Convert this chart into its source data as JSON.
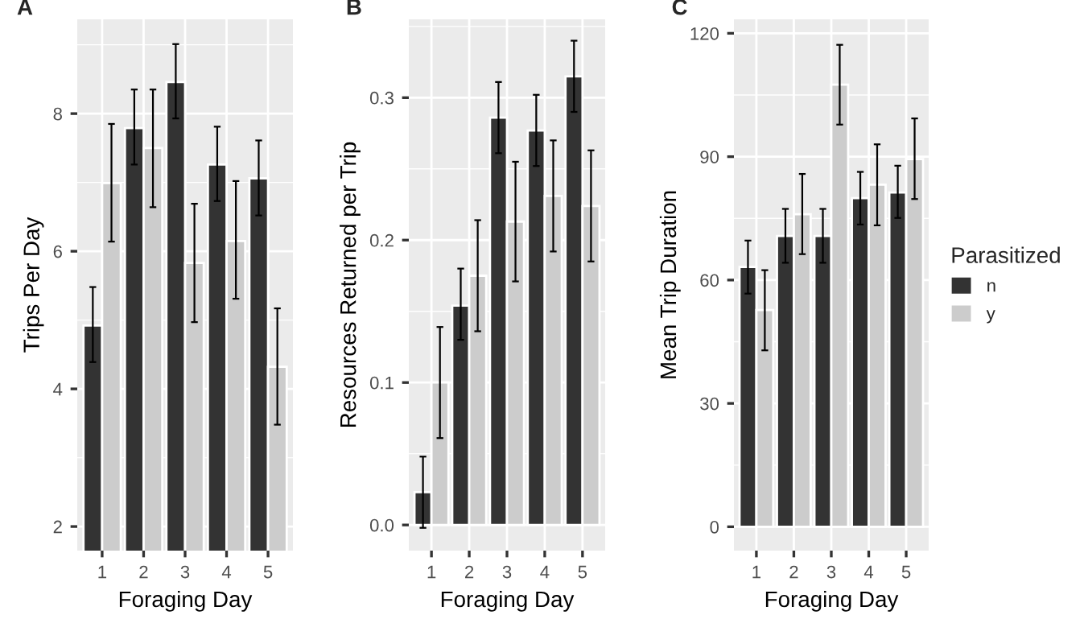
{
  "chart_data": [
    {
      "type": "bar",
      "title": "A",
      "xlabel": "Foraging Day",
      "ylabel": "Trips Per Day",
      "categories": [
        "1",
        "2",
        "3",
        "4",
        "5"
      ],
      "ylim": [
        1.65,
        9.37
      ],
      "yticks": [
        2,
        4,
        6,
        8
      ],
      "grid": true,
      "legend": false,
      "series": [
        {
          "color": "#333333",
          "values": [
            4.92,
            7.79,
            8.46,
            7.26,
            7.06
          ],
          "errors": [
            [
              4.39,
              5.48
            ],
            [
              7.26,
              8.35
            ],
            [
              7.93,
              9.01
            ],
            [
              6.73,
              7.81
            ],
            [
              6.52,
              7.61
            ]
          ]
        },
        {
          "color": "#cccccc",
          "values": [
            6.99,
            7.5,
            5.83,
            6.15,
            4.32
          ],
          "errors": [
            [
              6.14,
              7.85
            ],
            [
              6.64,
              8.35
            ],
            [
              4.97,
              6.69
            ],
            [
              5.31,
              7.02
            ],
            [
              3.48,
              5.17
            ]
          ]
        }
      ]
    },
    {
      "type": "bar",
      "title": "B",
      "xlabel": "Foraging Day",
      "ylabel": "Resources Returned per Trip",
      "categories": [
        "1",
        "2",
        "3",
        "4",
        "5"
      ],
      "ylim": [
        -0.018,
        0.355
      ],
      "yticks": [
        {
          "value": 0,
          "label": "0.0"
        },
        0.1,
        0.2,
        0.3
      ],
      "grid": true,
      "legend": false,
      "series": [
        {
          "color": "#333333",
          "values": [
            0.023,
            0.154,
            0.286,
            0.277,
            0.315
          ],
          "errors": [
            [
              -0.002,
              0.048
            ],
            [
              0.13,
              0.18
            ],
            [
              0.261,
              0.311
            ],
            [
              0.252,
              0.302
            ],
            [
              0.29,
              0.34
            ]
          ]
        },
        {
          "color": "#cccccc",
          "values": [
            0.1,
            0.175,
            0.213,
            0.231,
            0.224
          ],
          "errors": [
            [
              0.061,
              0.139
            ],
            [
              0.136,
              0.214
            ],
            [
              0.171,
              0.255
            ],
            [
              0.192,
              0.27
            ],
            [
              0.185,
              0.263
            ]
          ]
        }
      ]
    },
    {
      "type": "bar",
      "title": "C",
      "xlabel": "Foraging Day",
      "ylabel": "Mean Trip Duration",
      "legend_title": "Parasitized",
      "categories": [
        "1",
        "2",
        "3",
        "4",
        "5"
      ],
      "ylim": [
        -5.8,
        123.4
      ],
      "yticks": [
        0,
        30,
        60,
        90,
        120
      ],
      "grid": true,
      "legend": "right",
      "series": [
        {
          "name": "n",
          "color": "#333333",
          "values": [
            63.2,
            70.7,
            70.7,
            79.9,
            81.3
          ],
          "errors": [
            [
              56.7,
              69.6
            ],
            [
              64.2,
              77.3
            ],
            [
              64.2,
              77.3
            ],
            [
              73.5,
              86.3
            ],
            [
              75.1,
              87.8
            ]
          ]
        },
        {
          "name": "y",
          "color": "#cccccc",
          "values": [
            52.7,
            76.0,
            107.5,
            83.2,
            89.4
          ],
          "errors": [
            [
              42.9,
              62.4
            ],
            [
              66.3,
              85.8
            ],
            [
              97.8,
              117.2
            ],
            [
              73.3,
              93.0
            ],
            [
              79.7,
              99.3
            ]
          ]
        }
      ]
    }
  ]
}
